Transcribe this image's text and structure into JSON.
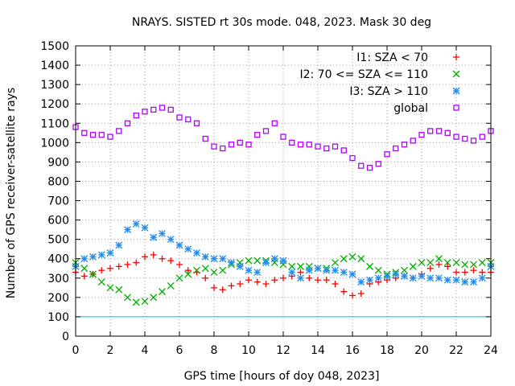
{
  "chart_data": {
    "type": "scatter",
    "title": "NRAYS. SISTED rt 30s mode. 048, 2023. Mask 30 deg",
    "xlabel": "GPS time [hours of doy 048, 2023]",
    "ylabel": "Number of GPS receiver-satellite rays",
    "xlim": [
      0,
      24
    ],
    "ylim": [
      0,
      1500
    ],
    "xticks": [
      "0",
      "2",
      "4",
      "6",
      "8",
      "10",
      "12",
      "14",
      "16",
      "18",
      "20",
      "22",
      "24"
    ],
    "yticks": [
      "0",
      "100",
      "200",
      "300",
      "400",
      "500",
      "600",
      "700",
      "800",
      "900",
      "1000",
      "1100",
      "1200",
      "1300",
      "1400",
      "1500"
    ],
    "grid": true,
    "legend_position": "top-right",
    "reference_line": {
      "y": 100,
      "color": "#00c8d8"
    },
    "series": [
      {
        "name": "I1: SZA < 70",
        "marker": "plus",
        "color": "#ff0000",
        "x": [
          0.0,
          0.5,
          1.0,
          1.5,
          2.0,
          2.5,
          3.0,
          3.5,
          4.0,
          4.5,
          5.0,
          5.5,
          6.0,
          6.5,
          7.0,
          7.5,
          8.0,
          8.5,
          9.0,
          9.5,
          10.0,
          10.5,
          11.0,
          11.5,
          12.0,
          12.5,
          13.0,
          13.5,
          14.0,
          14.5,
          15.0,
          15.5,
          16.0,
          16.5,
          17.0,
          17.5,
          18.0,
          18.5,
          19.0,
          19.5,
          20.0,
          20.5,
          21.0,
          21.5,
          22.0,
          22.5,
          23.0,
          23.5,
          24.0
        ],
        "y": [
          330,
          310,
          320,
          340,
          350,
          360,
          370,
          380,
          410,
          420,
          400,
          390,
          370,
          340,
          330,
          300,
          250,
          240,
          260,
          270,
          290,
          280,
          270,
          290,
          300,
          310,
          330,
          300,
          290,
          290,
          270,
          230,
          210,
          220,
          270,
          280,
          290,
          300,
          310,
          300,
          320,
          350,
          370,
          360,
          330,
          330,
          340,
          330,
          330
        ]
      },
      {
        "name": "I2: 70 <= SZA <= 110",
        "marker": "x",
        "color": "#00b000",
        "x": [
          0.0,
          0.5,
          1.0,
          1.5,
          2.0,
          2.5,
          3.0,
          3.5,
          4.0,
          4.5,
          5.0,
          5.5,
          6.0,
          6.5,
          7.0,
          7.5,
          8.0,
          8.5,
          9.0,
          9.5,
          10.0,
          10.5,
          11.0,
          11.5,
          12.0,
          12.5,
          13.0,
          13.5,
          14.0,
          14.5,
          15.0,
          15.5,
          16.0,
          16.5,
          17.0,
          17.5,
          18.0,
          18.5,
          19.0,
          19.5,
          20.0,
          20.5,
          21.0,
          21.5,
          22.0,
          22.5,
          23.0,
          23.5,
          24.0
        ],
        "y": [
          380,
          350,
          320,
          280,
          250,
          240,
          200,
          175,
          180,
          200,
          230,
          260,
          300,
          320,
          340,
          350,
          330,
          340,
          370,
          380,
          390,
          390,
          390,
          380,
          370,
          360,
          360,
          360,
          350,
          350,
          380,
          400,
          410,
          400,
          360,
          340,
          320,
          330,
          340,
          360,
          380,
          380,
          400,
          380,
          380,
          370,
          370,
          380,
          380
        ]
      },
      {
        "name": "I3: SZA > 110",
        "marker": "asterisk",
        "color": "#1e8cf0",
        "x": [
          0.0,
          0.5,
          1.0,
          1.5,
          2.0,
          2.5,
          3.0,
          3.5,
          4.0,
          4.5,
          5.0,
          5.5,
          6.0,
          6.5,
          7.0,
          7.5,
          8.0,
          8.5,
          9.0,
          9.5,
          10.0,
          10.5,
          11.0,
          11.5,
          12.0,
          12.5,
          13.0,
          13.5,
          14.0,
          14.5,
          15.0,
          15.5,
          16.0,
          16.5,
          17.0,
          17.5,
          18.0,
          18.5,
          19.0,
          19.5,
          20.0,
          20.5,
          21.0,
          21.5,
          22.0,
          22.5,
          23.0,
          23.5,
          24.0
        ],
        "y": [
          360,
          400,
          410,
          420,
          430,
          470,
          550,
          580,
          560,
          510,
          530,
          500,
          470,
          450,
          430,
          410,
          400,
          400,
          380,
          360,
          340,
          330,
          380,
          400,
          390,
          330,
          300,
          340,
          350,
          340,
          340,
          330,
          320,
          280,
          290,
          300,
          310,
          320,
          310,
          300,
          310,
          300,
          300,
          290,
          290,
          280,
          280,
          300,
          360
        ]
      },
      {
        "name": "global",
        "marker": "square",
        "color": "#b000ff",
        "x": [
          0.0,
          0.5,
          1.0,
          1.5,
          2.0,
          2.5,
          3.0,
          3.5,
          4.0,
          4.5,
          5.0,
          5.5,
          6.0,
          6.5,
          7.0,
          7.5,
          8.0,
          8.5,
          9.0,
          9.5,
          10.0,
          10.5,
          11.0,
          11.5,
          12.0,
          12.5,
          13.0,
          13.5,
          14.0,
          14.5,
          15.0,
          15.5,
          16.0,
          16.5,
          17.0,
          17.5,
          18.0,
          18.5,
          19.0,
          19.5,
          20.0,
          20.5,
          21.0,
          21.5,
          22.0,
          22.5,
          23.0,
          23.5,
          24.0
        ],
        "y": [
          1080,
          1050,
          1040,
          1040,
          1030,
          1060,
          1100,
          1140,
          1160,
          1170,
          1180,
          1170,
          1130,
          1120,
          1100,
          1020,
          980,
          970,
          990,
          1000,
          990,
          1040,
          1060,
          1100,
          1030,
          1000,
          990,
          990,
          980,
          970,
          980,
          960,
          920,
          880,
          870,
          890,
          940,
          970,
          990,
          1010,
          1040,
          1060,
          1060,
          1050,
          1030,
          1020,
          1010,
          1030,
          1060
        ]
      }
    ]
  }
}
